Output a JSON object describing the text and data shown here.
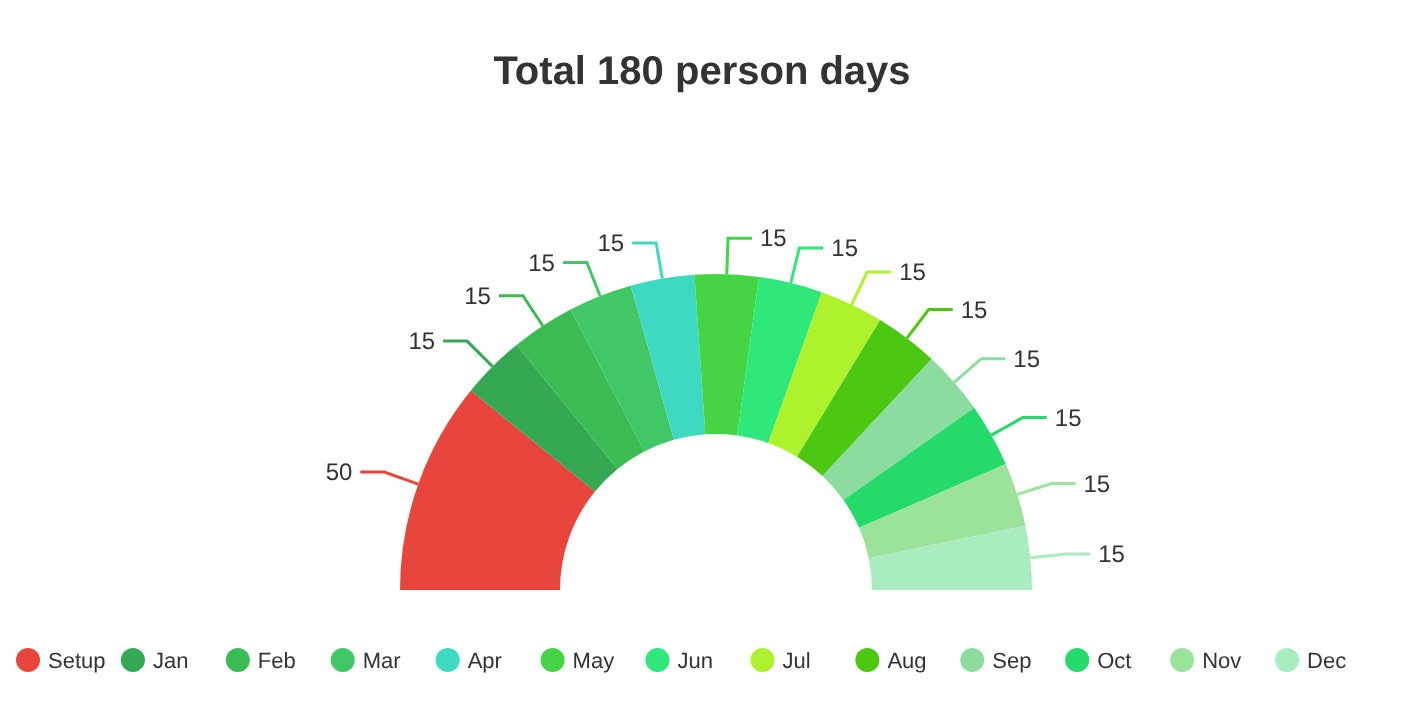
{
  "chart_data": {
    "type": "donut",
    "title": "Total 180 person days",
    "categories": [
      "Setup",
      "Jan",
      "Feb",
      "Mar",
      "Apr",
      "May",
      "Jun",
      "Jul",
      "Aug",
      "Sep",
      "Oct",
      "Nov",
      "Dec"
    ],
    "values": [
      50,
      15,
      15,
      15,
      15,
      15,
      15,
      15,
      15,
      15,
      15,
      15,
      15
    ],
    "colors": [
      "#e8453c",
      "#34a853",
      "#3cba54",
      "#40c866",
      "#3dd9c1",
      "#45d443",
      "#2ee87a",
      "#aef22e",
      "#4cc712",
      "#8cdca0",
      "#25d96a",
      "#9be39b",
      "#a8ecc0"
    ],
    "data_labels": true,
    "legend": "bottom"
  }
}
